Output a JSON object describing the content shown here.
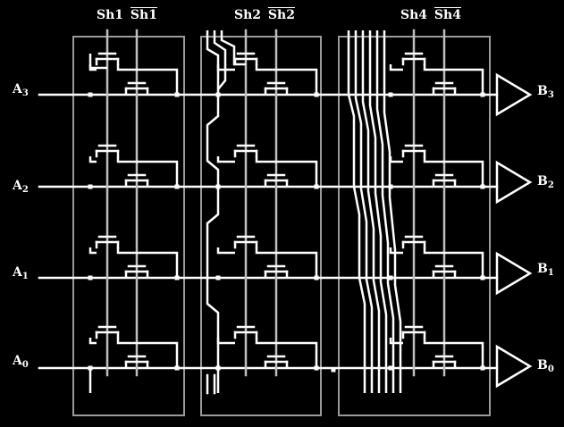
{
  "stage_headers": [
    {
      "sh": "Sh1",
      "sh_bar": "Sh1"
    },
    {
      "sh": "Sh2",
      "sh_bar": "Sh2"
    },
    {
      "sh": "Sh4",
      "sh_bar": "Sh4"
    }
  ],
  "inputs": [
    {
      "letter": "A",
      "sub": "3"
    },
    {
      "letter": "A",
      "sub": "2"
    },
    {
      "letter": "A",
      "sub": "1"
    },
    {
      "letter": "A",
      "sub": "0"
    }
  ],
  "outputs": [
    {
      "letter": "B",
      "sub": "3"
    },
    {
      "letter": "B",
      "sub": "2"
    },
    {
      "letter": "B",
      "sub": "1"
    },
    {
      "letter": "B",
      "sub": "0"
    }
  ],
  "colors": {
    "background": "#000000",
    "wire": "#ffffff",
    "control_line": "#bfbfbf",
    "stage_box": "#9a9a9a"
  }
}
